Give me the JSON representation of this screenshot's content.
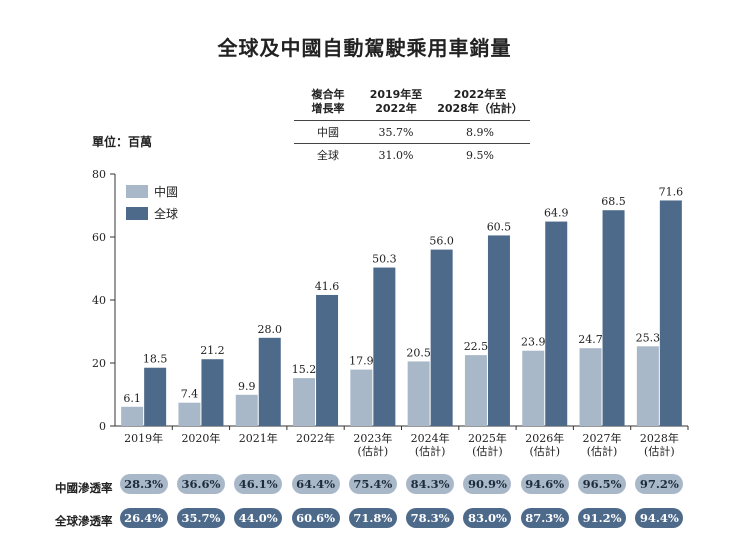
{
  "title": "全球及中國自動駕駛乘用車銷量",
  "unit_label": "單位：百萬",
  "cagr_table": {
    "headers": [
      "複合年\n增長率",
      "2019年至\n2022年",
      "2022年至\n2028年（估計）"
    ],
    "rows": [
      [
        "中國",
        "35.7%",
        "8.9%"
      ],
      [
        "全球",
        "31.0%",
        "9.5%"
      ]
    ]
  },
  "colors": {
    "china": "#a9b8c9",
    "global": "#4d6a8b",
    "axis": "#333333"
  },
  "chart_data": {
    "type": "bar",
    "categories": [
      "2019年",
      "2020年",
      "2021年",
      "2022年",
      "2023年\n(估計)",
      "2024年\n(估計)",
      "2025年\n(估計)",
      "2026年\n(估計)",
      "2027年\n(估計)",
      "2028年\n(估計)"
    ],
    "series": [
      {
        "name": "中國",
        "values": [
          6.1,
          7.4,
          9.9,
          15.2,
          17.9,
          20.5,
          22.5,
          23.9,
          24.7,
          25.3
        ]
      },
      {
        "name": "全球",
        "values": [
          18.5,
          21.2,
          28.0,
          41.6,
          50.3,
          56.0,
          60.5,
          64.9,
          68.5,
          71.6
        ]
      }
    ],
    "ylim": [
      0,
      80
    ],
    "yticks": [
      0,
      20,
      40,
      60,
      80
    ],
    "legend_position": "top-left",
    "grid": false
  },
  "penetration": {
    "china_label": "中國滲透率",
    "global_label": "全球滲透率",
    "china": [
      "28.3%",
      "36.6%",
      "46.1%",
      "64.4%",
      "75.4%",
      "84.3%",
      "90.9%",
      "94.6%",
      "96.5%",
      "97.2%"
    ],
    "global": [
      "26.4%",
      "35.7%",
      "44.0%",
      "60.6%",
      "71.8%",
      "78.3%",
      "83.0%",
      "87.3%",
      "91.2%",
      "94.4%"
    ]
  }
}
